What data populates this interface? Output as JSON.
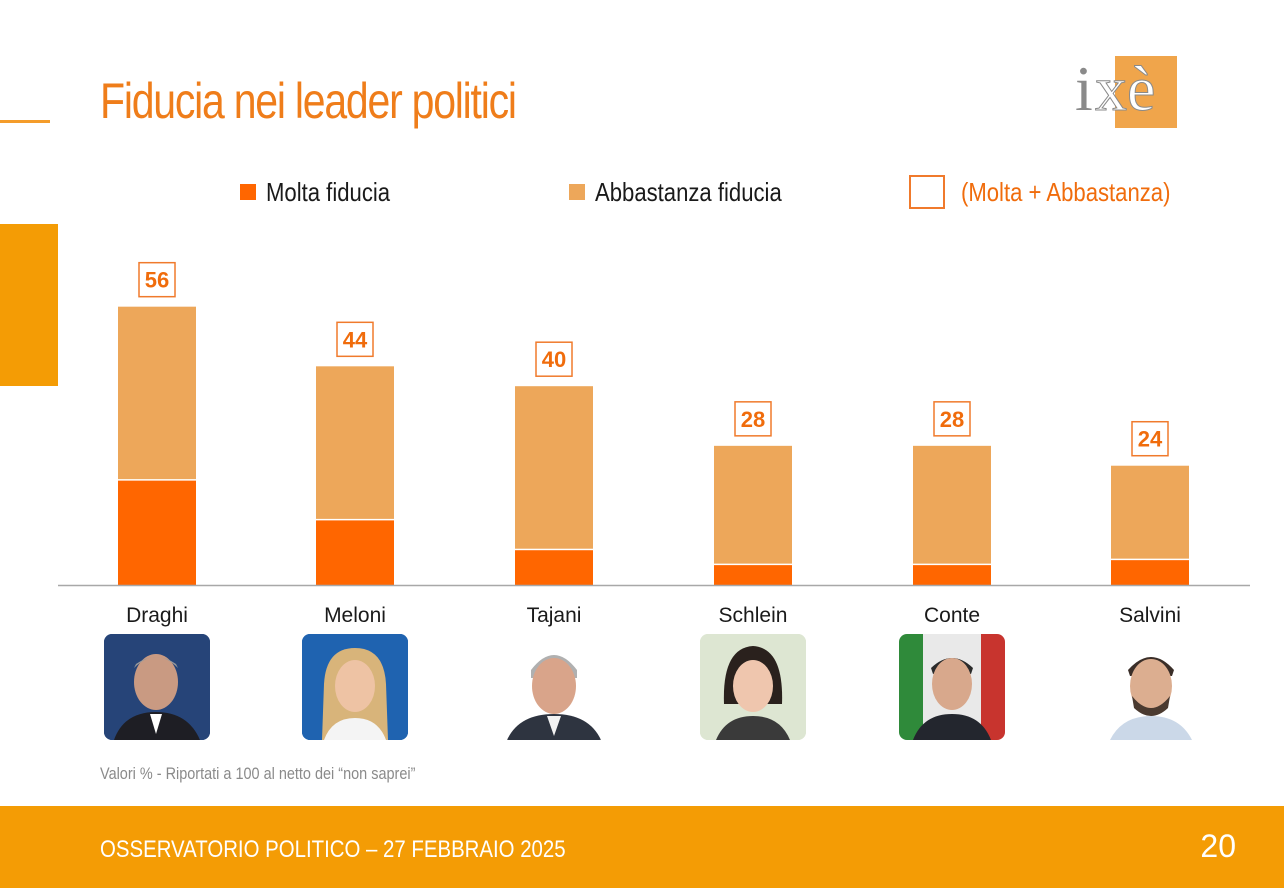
{
  "title": "Fiducia nei leader politici",
  "logo_text": "ixè",
  "legend": {
    "molta": "Molta fiducia",
    "abbastanza": "Abbastanza fiducia",
    "totale": "(Molta + Abbastanza)"
  },
  "colors": {
    "molta": "#ff6600",
    "abbastanza": "#eda75a",
    "total_label": "#f06c0c",
    "accent": "#f49c05",
    "title": "#ef7d1a"
  },
  "chart_data": {
    "type": "bar",
    "stacked": true,
    "categories": [
      "Draghi",
      "Meloni",
      "Tajani",
      "Schlein",
      "Conte",
      "Salvini"
    ],
    "series": [
      {
        "name": "Molta fiducia",
        "values": [
          21,
          13,
          7,
          4,
          4,
          5
        ]
      },
      {
        "name": "Abbastanza fiducia",
        "values": [
          35,
          31,
          33,
          24,
          24,
          19
        ]
      }
    ],
    "totals": [
      56,
      44,
      40,
      28,
      28,
      24
    ],
    "total_series_name": "(Molta + Abbastanza)",
    "ylim": [
      0,
      60
    ],
    "grid": false,
    "legend_position": "top"
  },
  "leaders": [
    {
      "name": "Draghi",
      "photo": "portrait-draghi"
    },
    {
      "name": "Meloni",
      "photo": "portrait-meloni"
    },
    {
      "name": "Tajani",
      "photo": "portrait-tajani"
    },
    {
      "name": "Schlein",
      "photo": "portrait-schlein"
    },
    {
      "name": "Conte",
      "photo": "portrait-conte"
    },
    {
      "name": "Salvini",
      "photo": "portrait-salvini"
    }
  ],
  "note": "Valori % - Riportati a 100 al netto dei “non saprei”",
  "footer": {
    "text": "OSSERVATORIO POLITICO – 27 FEBBRAIO 2025",
    "page": "20"
  }
}
